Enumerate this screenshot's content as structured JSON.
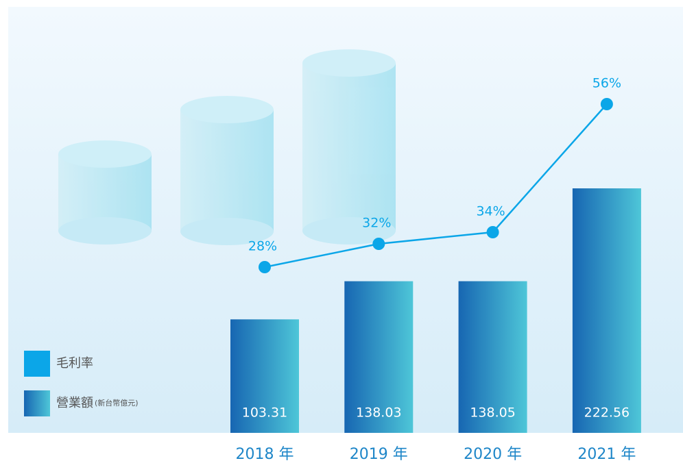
{
  "chart_data": {
    "type": "bar",
    "categories": [
      "2018 年",
      "2019 年",
      "2020 年",
      "2021 年"
    ],
    "series": [
      {
        "name": "營業額",
        "unit": "(新台幣億元)",
        "color": "#1766b2",
        "values": [
          103.31,
          138.03,
          138.05,
          222.56
        ]
      },
      {
        "name": "毛利率",
        "type": "line",
        "color": "#0ba6e8",
        "values": [
          28,
          32,
          34,
          56
        ],
        "value_labels": [
          "28%",
          "32%",
          "34%",
          "56%"
        ]
      }
    ],
    "legend": "bottom-left"
  }
}
